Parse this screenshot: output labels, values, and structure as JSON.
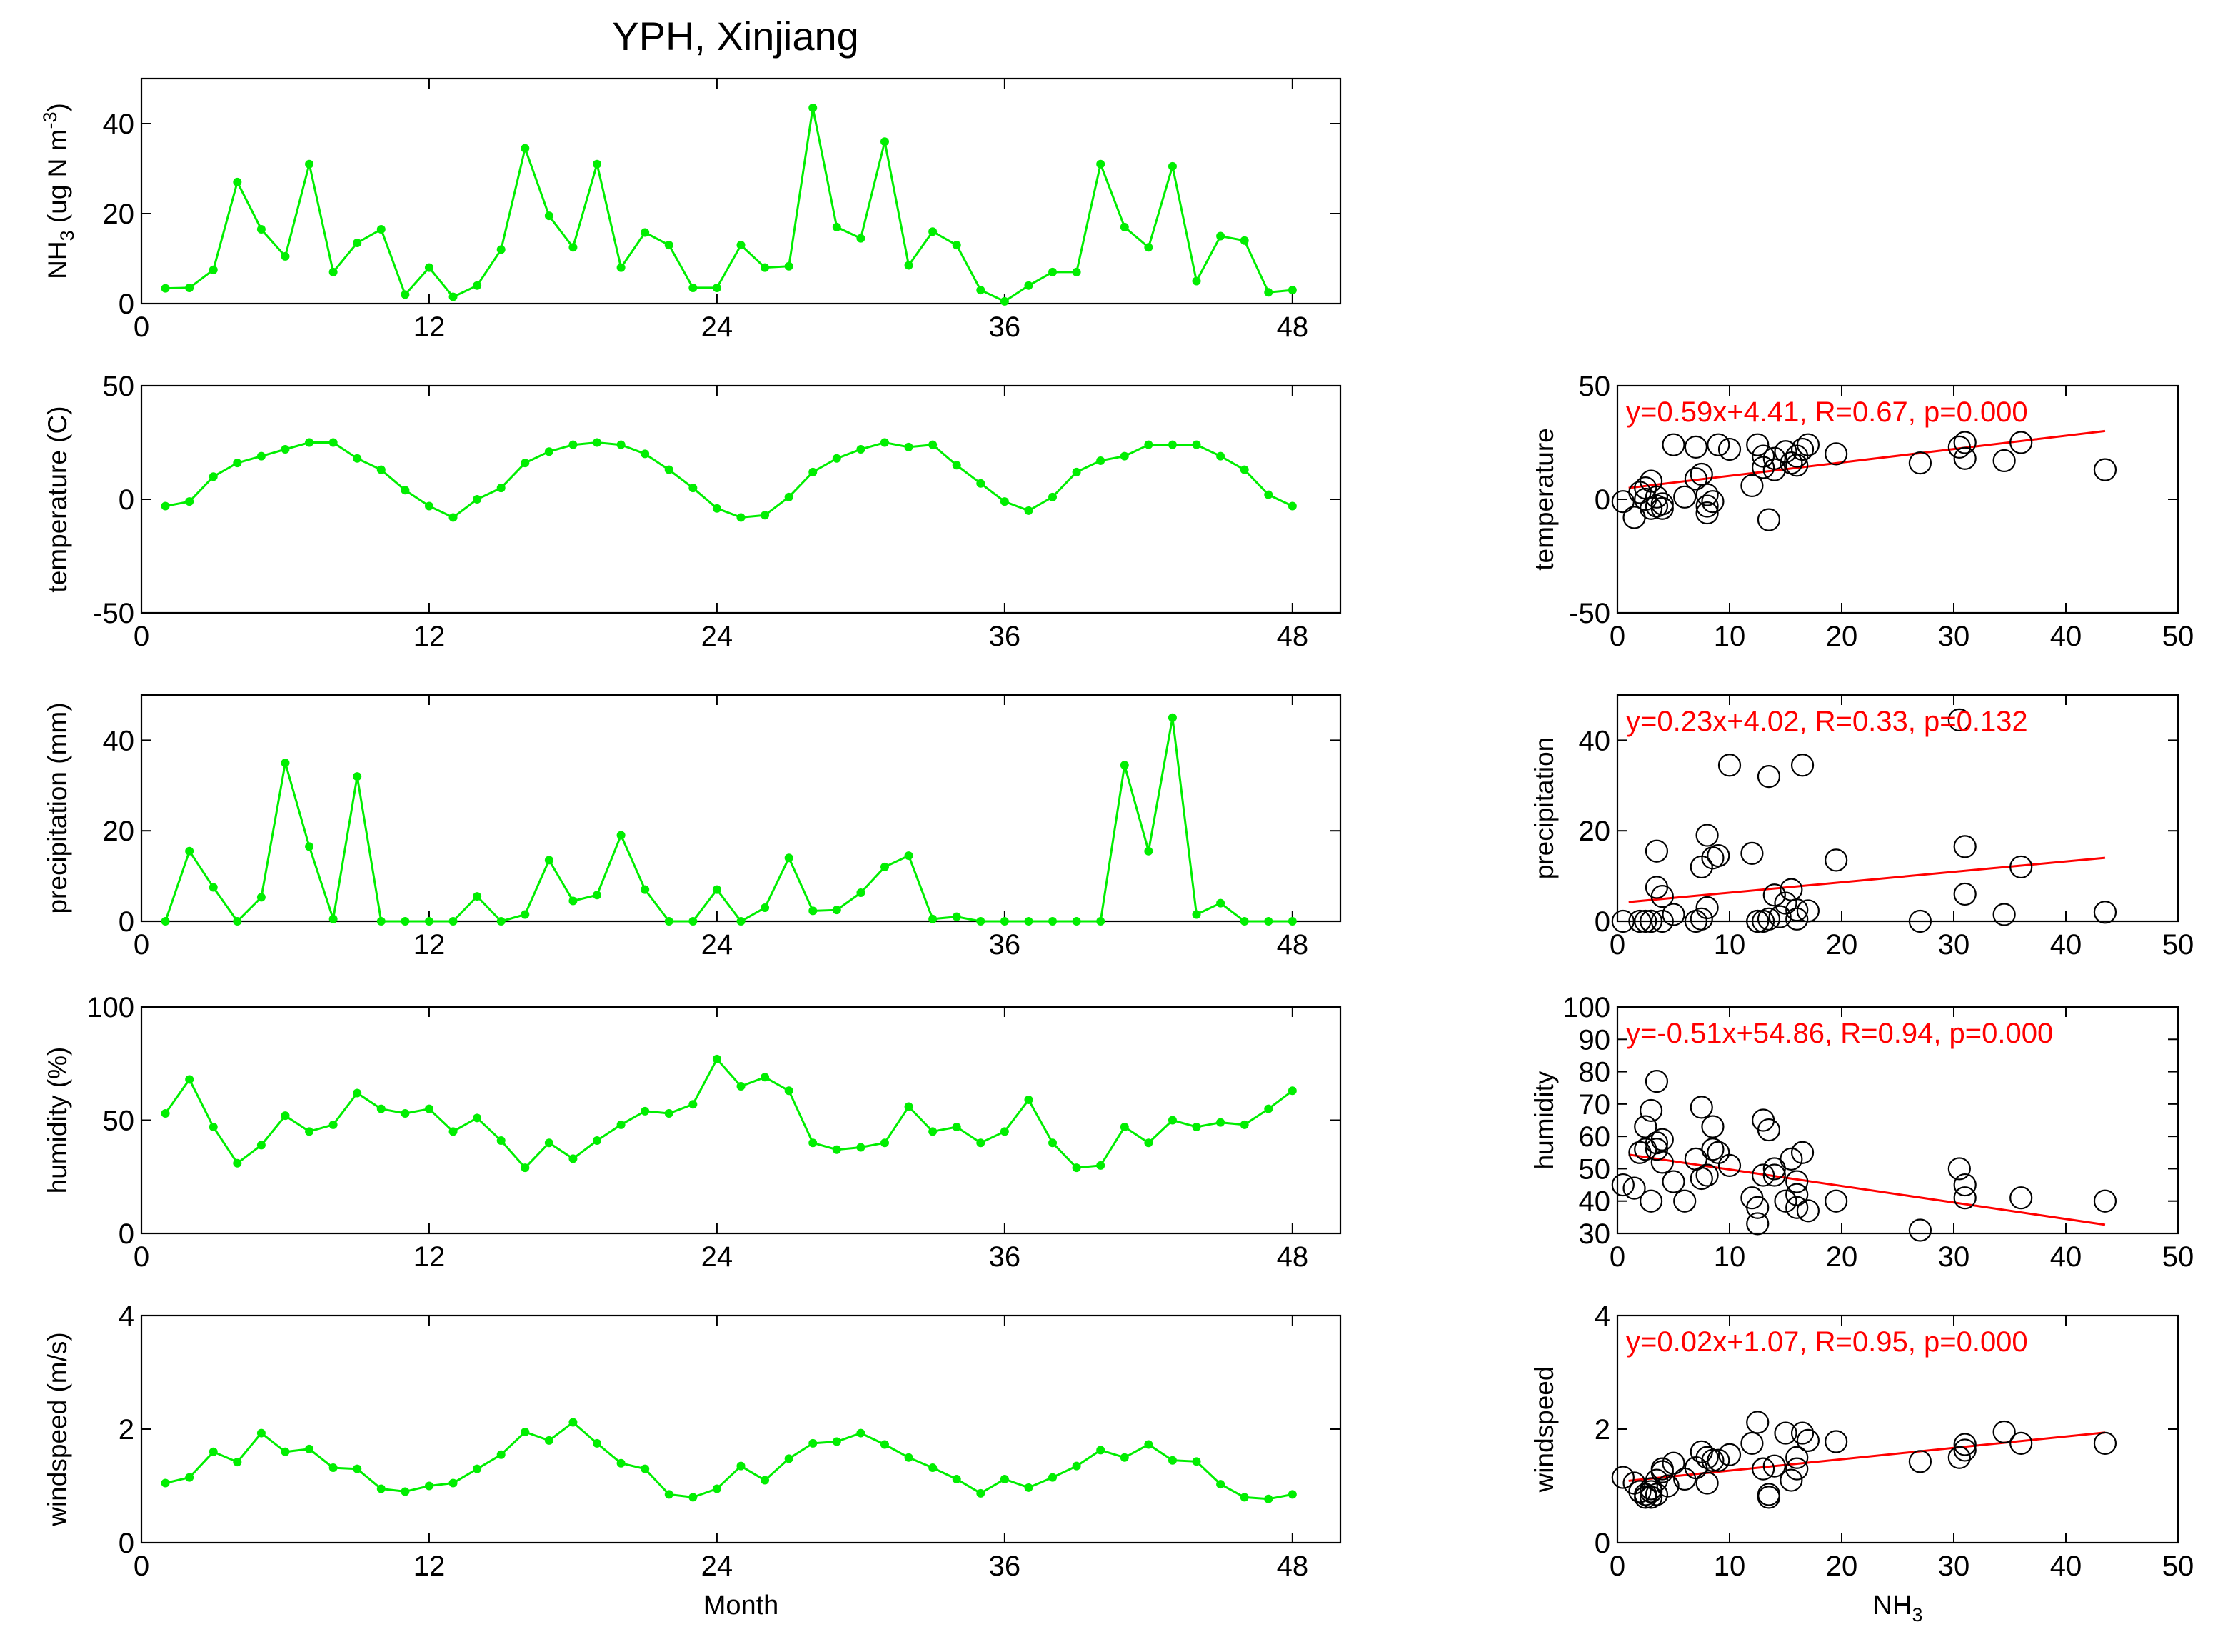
{
  "title": "YPH, Xinjiang",
  "colors": {
    "series": "#00ee00",
    "fit": "#ff0000",
    "axes": "#000000"
  },
  "chart_data": [
    {
      "id": "nh3",
      "type": "line",
      "ylabel": "NH3 (ug N m-3)",
      "ylabel_parts": {
        "a": "NH",
        "sub": "3",
        "b": " (ug N m",
        "sup": "-3",
        "c": ")"
      },
      "xlim": [
        0,
        50
      ],
      "ylim": [
        0,
        50
      ],
      "xticks": [
        0,
        12,
        24,
        36,
        48
      ],
      "yticks": [
        0,
        20,
        40
      ],
      "xlabel": "",
      "x": [
        1,
        2,
        3,
        4,
        5,
        6,
        7,
        8,
        9,
        10,
        11,
        12,
        13,
        14,
        15,
        16,
        17,
        18,
        19,
        20,
        21,
        22,
        23,
        24,
        25,
        26,
        27,
        28,
        29,
        30,
        31,
        32,
        33,
        34,
        35,
        36,
        37,
        38,
        39,
        40,
        41,
        42,
        43,
        44,
        45,
        46,
        47,
        48
      ],
      "values": [
        3.4,
        3.5,
        7.5,
        27,
        16.5,
        10.5,
        31,
        7,
        13.5,
        16.5,
        2,
        8,
        1.5,
        4,
        12,
        34.5,
        19.5,
        12.5,
        31,
        8,
        15.8,
        13,
        3.5,
        3.5,
        13,
        8,
        8.3,
        43.5,
        17,
        14.5,
        36,
        8.5,
        16,
        13,
        3,
        0.5,
        4,
        7,
        7,
        31,
        17,
        12.5,
        30.5,
        5,
        15,
        14,
        2.5,
        3
      ]
    },
    {
      "id": "temperature",
      "type": "line",
      "ylabel": "temperature (C)",
      "xlim": [
        0,
        50
      ],
      "ylim": [
        -50,
        50
      ],
      "xticks": [
        0,
        12,
        24,
        36,
        48
      ],
      "yticks": [
        -50,
        0,
        50
      ],
      "xlabel": "",
      "x": [
        1,
        2,
        3,
        4,
        5,
        6,
        7,
        8,
        9,
        10,
        11,
        12,
        13,
        14,
        15,
        16,
        17,
        18,
        19,
        20,
        21,
        22,
        23,
        24,
        25,
        26,
        27,
        28,
        29,
        30,
        31,
        32,
        33,
        34,
        35,
        36,
        37,
        38,
        39,
        40,
        41,
        42,
        43,
        44,
        45,
        46,
        47,
        48
      ],
      "values": [
        -3,
        -1,
        10,
        16,
        19,
        22,
        25,
        25,
        18,
        13,
        4,
        -3,
        -8,
        0,
        5,
        16,
        21,
        24,
        25,
        24,
        20,
        13,
        5,
        -4,
        -8,
        -7,
        1,
        12,
        18,
        22,
        25,
        23,
        24,
        15,
        7,
        -1,
        -5,
        1,
        12,
        17,
        19,
        24,
        24,
        24,
        19,
        13,
        2,
        -3
      ]
    },
    {
      "id": "precipitation",
      "type": "line",
      "ylabel": "precipitation (mm)",
      "xlim": [
        0,
        50
      ],
      "ylim": [
        0,
        50
      ],
      "xticks": [
        0,
        12,
        24,
        36,
        48
      ],
      "yticks": [
        0,
        20,
        40
      ],
      "xlabel": "",
      "x": [
        1,
        2,
        3,
        4,
        5,
        6,
        7,
        8,
        9,
        10,
        11,
        12,
        13,
        14,
        15,
        16,
        17,
        18,
        19,
        20,
        21,
        22,
        23,
        24,
        25,
        26,
        27,
        28,
        29,
        30,
        31,
        32,
        33,
        34,
        35,
        36,
        37,
        38,
        39,
        40,
        41,
        42,
        43,
        44,
        45,
        46,
        47,
        48
      ],
      "values": [
        0,
        15.5,
        7.5,
        0,
        5.3,
        35,
        16.5,
        0.5,
        32,
        0,
        0,
        0,
        0,
        5.5,
        0,
        1.5,
        13.5,
        4.5,
        5.8,
        19,
        7,
        0,
        0,
        7,
        0,
        3,
        14,
        2.3,
        2.5,
        6.3,
        12,
        14.5,
        0.5,
        1,
        0,
        0,
        0,
        0,
        0,
        0,
        34.5,
        15.5,
        45,
        1.5,
        4,
        0,
        0,
        0
      ]
    },
    {
      "id": "humidity",
      "type": "line",
      "ylabel": "humidity (%)",
      "xlim": [
        0,
        50
      ],
      "ylim": [
        0,
        100
      ],
      "xticks": [
        0,
        12,
        24,
        36,
        48
      ],
      "yticks": [
        0,
        50,
        100
      ],
      "xlabel": "",
      "x": [
        1,
        2,
        3,
        4,
        5,
        6,
        7,
        8,
        9,
        10,
        11,
        12,
        13,
        14,
        15,
        16,
        17,
        18,
        19,
        20,
        21,
        22,
        23,
        24,
        25,
        26,
        27,
        28,
        29,
        30,
        31,
        32,
        33,
        34,
        35,
        36,
        37,
        38,
        39,
        40,
        41,
        42,
        43,
        44,
        45,
        46,
        47,
        48
      ],
      "values": [
        53,
        68,
        47,
        31,
        39,
        52,
        45,
        48,
        62,
        55,
        53,
        55,
        45,
        51,
        41,
        29,
        40,
        33,
        41,
        48,
        54,
        53,
        57,
        77,
        65,
        69,
        63,
        40,
        37,
        38,
        40,
        56,
        45,
        47,
        40,
        45,
        59,
        40,
        29,
        30,
        47,
        40,
        50,
        47,
        49,
        48,
        55,
        63
      ]
    },
    {
      "id": "windspeed",
      "type": "line",
      "ylabel": "windspeed (m/s)",
      "xlim": [
        0,
        50
      ],
      "ylim": [
        0,
        4
      ],
      "xticks": [
        0,
        12,
        24,
        36,
        48
      ],
      "yticks": [
        0,
        2,
        4
      ],
      "xlabel": "Month",
      "x": [
        1,
        2,
        3,
        4,
        5,
        6,
        7,
        8,
        9,
        10,
        11,
        12,
        13,
        14,
        15,
        16,
        17,
        18,
        19,
        20,
        21,
        22,
        23,
        24,
        25,
        26,
        27,
        28,
        29,
        30,
        31,
        32,
        33,
        34,
        35,
        36,
        37,
        38,
        39,
        40,
        41,
        42,
        43,
        44,
        45,
        46,
        47,
        48
      ],
      "values": [
        1.05,
        1.15,
        1.6,
        1.42,
        1.93,
        1.6,
        1.65,
        1.32,
        1.3,
        0.95,
        0.9,
        1.0,
        1.05,
        1.3,
        1.55,
        1.95,
        1.8,
        2.12,
        1.75,
        1.4,
        1.3,
        0.85,
        0.8,
        0.95,
        1.35,
        1.1,
        1.48,
        1.75,
        1.78,
        1.93,
        1.73,
        1.5,
        1.32,
        1.12,
        0.87,
        1.12,
        0.97,
        1.15,
        1.35,
        1.63,
        1.5,
        1.73,
        1.45,
        1.43,
        1.03,
        0.8,
        0.77,
        0.85
      ]
    },
    {
      "id": "scatter-temperature",
      "type": "scatter",
      "ylabel": "temperature",
      "xlabel": "",
      "xlim": [
        0,
        50
      ],
      "ylim": [
        -50,
        50
      ],
      "xticks": [
        0,
        10,
        20,
        30,
        40,
        50
      ],
      "yticks": [
        -50,
        0,
        50
      ],
      "equation": "y=0.59x+4.41, R=0.67, p=0.000",
      "fit": {
        "slope": 0.59,
        "intercept": 4.41,
        "x_range": [
          1,
          43.5
        ]
      },
      "x": [
        0.5,
        1.5,
        2,
        2.5,
        3,
        3,
        3.5,
        4,
        4,
        5,
        6,
        7,
        7.5,
        8,
        8,
        8.5,
        9,
        10,
        12,
        12.5,
        13,
        13.5,
        14,
        14,
        15,
        15.5,
        16,
        16,
        16.5,
        17,
        19.5,
        27,
        30.5,
        31,
        31,
        34.5,
        36,
        43.5,
        2.5,
        3.5,
        7,
        13,
        8
      ],
      "y": [
        -1,
        -8,
        3,
        5,
        8,
        -4,
        1,
        -4,
        -2,
        24,
        1,
        23,
        11,
        -3,
        -6,
        -1,
        24,
        22,
        6,
        24,
        14,
        -9,
        13,
        18,
        21,
        16,
        19,
        15,
        22,
        24,
        20,
        16,
        23,
        25,
        18,
        17,
        25,
        13,
        0,
        -3,
        9,
        19,
        2
      ]
    },
    {
      "id": "scatter-precipitation",
      "type": "scatter",
      "ylabel": "precipitation",
      "xlabel": "",
      "xlim": [
        0,
        50
      ],
      "ylim": [
        0,
        50
      ],
      "xticks": [
        0,
        10,
        20,
        30,
        40,
        50
      ],
      "yticks": [
        0,
        20,
        40
      ],
      "equation": "y=0.23x+4.02, R=0.33, p=0.132",
      "fit": {
        "slope": 0.23,
        "intercept": 4.02,
        "x_range": [
          1,
          43.5
        ]
      },
      "x": [
        0.5,
        2,
        2.5,
        3,
        3.5,
        3.5,
        4,
        4,
        5,
        7,
        7.5,
        7.5,
        8,
        8.5,
        9,
        10,
        12,
        12.5,
        13,
        13.5,
        13.5,
        14,
        15,
        15.5,
        16,
        16,
        16.5,
        17,
        19.5,
        27,
        30.5,
        31,
        31,
        34.5,
        36,
        43.5,
        3,
        8,
        14.5,
        12.5
      ],
      "y": [
        0,
        0,
        0,
        0,
        15.5,
        7.5,
        0,
        5.5,
        1.5,
        0,
        0.5,
        12,
        19,
        14,
        14.5,
        34.5,
        15,
        0,
        0,
        32,
        0.5,
        5.8,
        4,
        7,
        2.5,
        0.5,
        34.5,
        2.3,
        13.5,
        0,
        44.5,
        16.5,
        6,
        1.5,
        12,
        2,
        0,
        3,
        1,
        0
      ]
    },
    {
      "id": "scatter-humidity",
      "type": "scatter",
      "ylabel": "humidity",
      "xlabel": "",
      "xlim": [
        0,
        50
      ],
      "ylim": [
        30,
        100
      ],
      "xticks": [
        0,
        10,
        20,
        30,
        40,
        50
      ],
      "yticks": [
        30,
        40,
        50,
        60,
        70,
        80,
        90,
        100
      ],
      "equation": "y=-0.51x+54.86, R=0.94, p=0.000",
      "fit": {
        "slope": -0.51,
        "intercept": 54.86,
        "x_range": [
          1,
          43.5
        ]
      },
      "x": [
        0.5,
        1.5,
        2,
        2.5,
        3,
        3,
        3.5,
        3.5,
        4,
        4,
        5,
        6,
        7,
        7.5,
        7.5,
        8,
        8.5,
        9,
        10,
        12,
        12.5,
        12.5,
        13,
        13,
        13.5,
        14,
        15,
        15.5,
        16,
        16,
        16.5,
        17,
        19.5,
        27,
        30.5,
        31,
        31,
        36,
        43.5,
        2.5,
        3.5,
        8.5,
        14,
        16
      ],
      "y": [
        45,
        44,
        55,
        63,
        40,
        68,
        77,
        56,
        59,
        52,
        46,
        40,
        53,
        47,
        69,
        48,
        63,
        55,
        51,
        41,
        33,
        38,
        65,
        48,
        62,
        50,
        40,
        53,
        42,
        38,
        55,
        37,
        40,
        31,
        50,
        45,
        41,
        41,
        40,
        56,
        58,
        56,
        48,
        46
      ]
    },
    {
      "id": "scatter-windspeed",
      "type": "scatter",
      "ylabel": "windspeed",
      "xlabel": "NH3",
      "xlabel_parts": {
        "a": "NH",
        "sub": "3"
      },
      "xlim": [
        0,
        50
      ],
      "ylim": [
        0,
        4
      ],
      "xticks": [
        0,
        10,
        20,
        30,
        40,
        50
      ],
      "yticks": [
        0,
        2,
        4
      ],
      "equation": "y=0.02x+1.07, R=0.95, p=0.000",
      "fit": {
        "slope": 0.02,
        "intercept": 1.07,
        "x_range": [
          1,
          43.5
        ]
      },
      "x": [
        0.5,
        1.5,
        2,
        2.5,
        2.5,
        3,
        3,
        3.5,
        3.5,
        4,
        4,
        5,
        6,
        7,
        7.5,
        8,
        8,
        8.5,
        9,
        10,
        12,
        12.5,
        13,
        13.5,
        13.5,
        14,
        15,
        15.5,
        16,
        16,
        16.5,
        17,
        19.5,
        27,
        30.5,
        31,
        31,
        34.5,
        36,
        43.5,
        3,
        4.5
      ],
      "y": [
        1.15,
        1.05,
        0.9,
        0.85,
        0.8,
        0.95,
        0.8,
        1.1,
        0.85,
        1.3,
        1.25,
        1.4,
        1.12,
        1.32,
        1.6,
        1.05,
        1.5,
        1.45,
        1.45,
        1.55,
        1.75,
        2.12,
        1.3,
        0.85,
        0.8,
        1.35,
        1.93,
        1.1,
        1.3,
        1.5,
        1.93,
        1.8,
        1.78,
        1.43,
        1.5,
        1.63,
        1.73,
        1.95,
        1.75,
        1.75,
        0.9,
        1.0
      ]
    }
  ]
}
